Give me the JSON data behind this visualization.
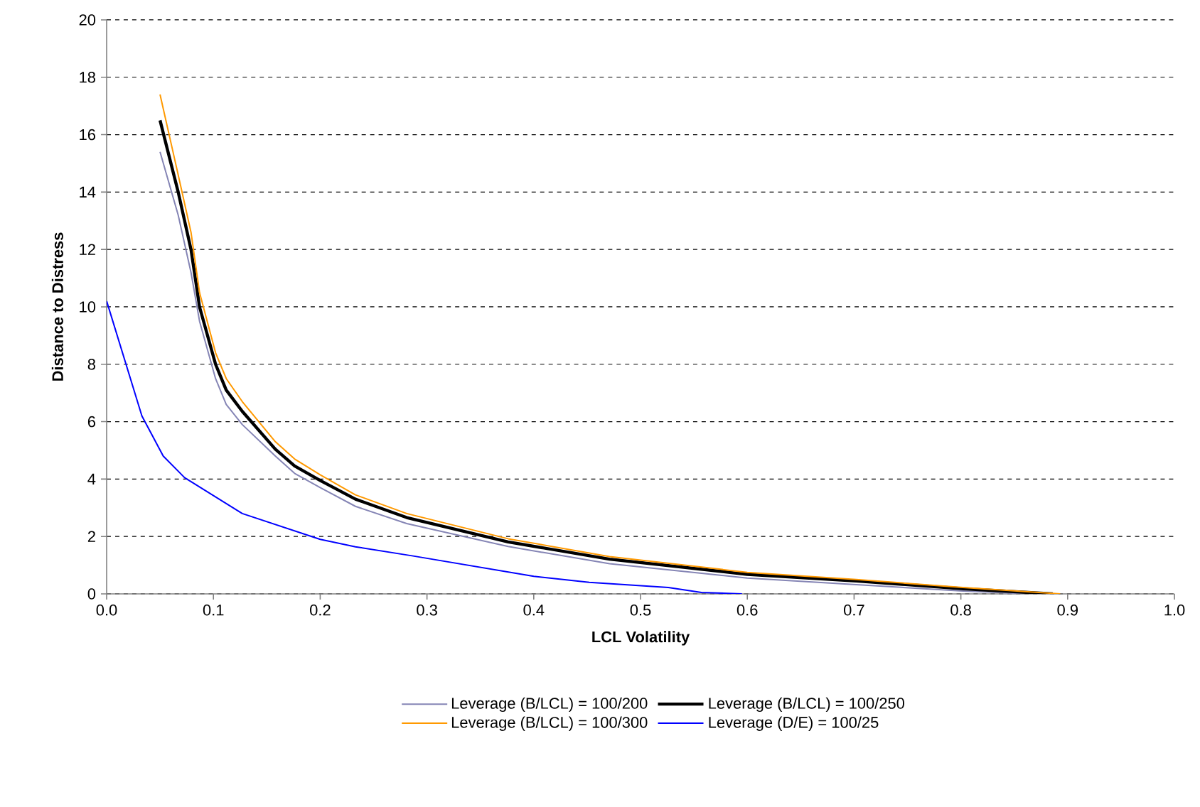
{
  "chart_data": {
    "type": "line",
    "xlabel": "LCL Volatility",
    "ylabel": "Distance to Distress",
    "xlim": [
      0,
      1
    ],
    "ylim": [
      0,
      20
    ],
    "xticks": [
      {
        "value": 0,
        "label": "0.0"
      },
      {
        "value": 0.1,
        "label": "0.1"
      },
      {
        "value": 0.2,
        "label": "0.2"
      },
      {
        "value": 0.3,
        "label": "0.3"
      },
      {
        "value": 0.4,
        "label": "0.4"
      },
      {
        "value": 0.5,
        "label": "0.5"
      },
      {
        "value": 0.6,
        "label": "0.6"
      },
      {
        "value": 0.7,
        "label": "0.7"
      },
      {
        "value": 0.8,
        "label": "0.8"
      },
      {
        "value": 0.9,
        "label": "0.9"
      },
      {
        "value": 1,
        "label": "1.0"
      }
    ],
    "yticks": [
      0,
      2,
      4,
      6,
      8,
      10,
      12,
      14,
      16,
      18,
      20
    ],
    "grid": "y",
    "legend": "bottom",
    "marker": "none",
    "line_style": "solid",
    "series": [
      {
        "name": "Leverage (B/LCL) = 100/200",
        "color": "#8585b5",
        "x": [
          0.05,
          0.067,
          0.079,
          0.087,
          0.102,
          0.112,
          0.127,
          0.158,
          0.176,
          0.2,
          0.233,
          0.281,
          0.376,
          0.471,
          0.6,
          0.702,
          0.802,
          0.867
        ],
        "values": [
          15.4,
          13.2,
          11.2,
          9.5,
          7.5,
          6.6,
          5.9,
          4.8,
          4.2,
          3.7,
          3.05,
          2.45,
          1.65,
          1.05,
          0.55,
          0.32,
          0.1,
          0
        ]
      },
      {
        "name": "Leverage (B/LCL) = 100/250",
        "color": "#000000",
        "x": [
          0.05,
          0.067,
          0.079,
          0.087,
          0.102,
          0.112,
          0.127,
          0.158,
          0.176,
          0.2,
          0.233,
          0.281,
          0.376,
          0.471,
          0.6,
          0.702,
          0.802,
          0.886
        ],
        "values": [
          16.5,
          14,
          12,
          10,
          8,
          7.1,
          6.36,
          5.04,
          4.46,
          3.95,
          3.3,
          2.66,
          1.81,
          1.21,
          0.68,
          0.45,
          0.18,
          0
        ]
      },
      {
        "name": "Leverage (B/LCL) = 100/300",
        "color": "#ff9900",
        "x": [
          0.05,
          0.067,
          0.079,
          0.087,
          0.102,
          0.112,
          0.127,
          0.158,
          0.176,
          0.2,
          0.233,
          0.281,
          0.376,
          0.471,
          0.6,
          0.702,
          0.802,
          0.893
        ],
        "values": [
          17.4,
          14.6,
          12.6,
          10.5,
          8.4,
          7.5,
          6.7,
          5.3,
          4.7,
          4.15,
          3.45,
          2.8,
          1.92,
          1.3,
          0.75,
          0.5,
          0.22,
          0
        ]
      },
      {
        "name": "Leverage (D/E) = 100/25",
        "color": "#0000ff",
        "x": [
          0,
          0.033,
          0.053,
          0.073,
          0.127,
          0.2,
          0.233,
          0.287,
          0.4,
          0.452,
          0.526,
          0.557,
          0.595
        ],
        "values": [
          10.2,
          6.2,
          4.8,
          4.05,
          2.8,
          1.9,
          1.64,
          1.32,
          0.61,
          0.4,
          0.22,
          0.05,
          0
        ]
      }
    ]
  }
}
